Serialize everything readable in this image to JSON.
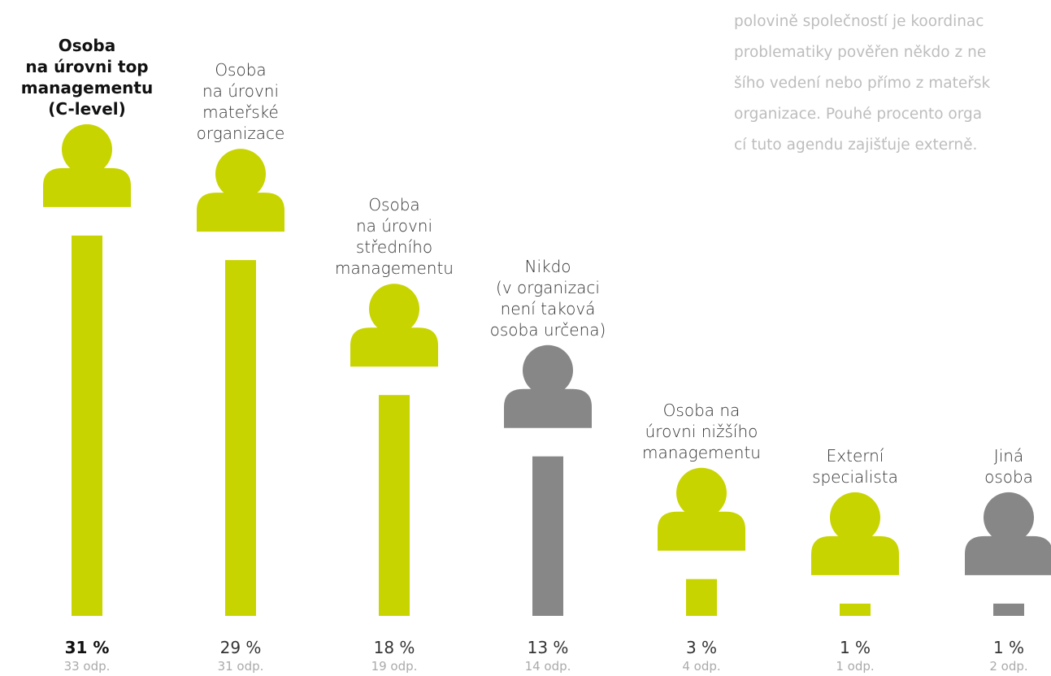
{
  "chart_data": {
    "type": "bar",
    "categories": [
      "Osoba\nna úrovni top\nmanagementu\n(C-level)",
      "Osoba\nna úrovni\nmateřské\norganizace",
      "Osoba\nna úrovni\nstředního\nmanagementu",
      "Nikdo\n(v organizaci\nnení taková\nosoba určena)",
      "Osoba na\núrovni nižšího\nmanagementu",
      "Externí\nspecialista",
      "Jiná\nosoba"
    ],
    "values": [
      31,
      29,
      18,
      13,
      3,
      1,
      1
    ],
    "value_labels": [
      "31 %",
      "29 %",
      "18 %",
      "13 %",
      "3 %",
      "1 %",
      "1 %"
    ],
    "counts": [
      33,
      31,
      19,
      14,
      4,
      1,
      2
    ],
    "count_labels": [
      "33 odp.",
      "31 odp.",
      "19 odp.",
      "14 odp.",
      "4 odp.",
      "1 odp.",
      "2 odp."
    ],
    "colors": [
      "#c8d400",
      "#c8d400",
      "#c8d400",
      "#878787",
      "#c8d400",
      "#c8d400",
      "#878787"
    ],
    "highlight": 0,
    "annotation": [
      "polovině společností je koordinac",
      "problematiky pověřen někdo z ne",
      "šího vedení nebo přímo z mateřsk",
      "organizace. Pouhé procento orga",
      "cí tuto agendu zajišťuje externě."
    ]
  }
}
